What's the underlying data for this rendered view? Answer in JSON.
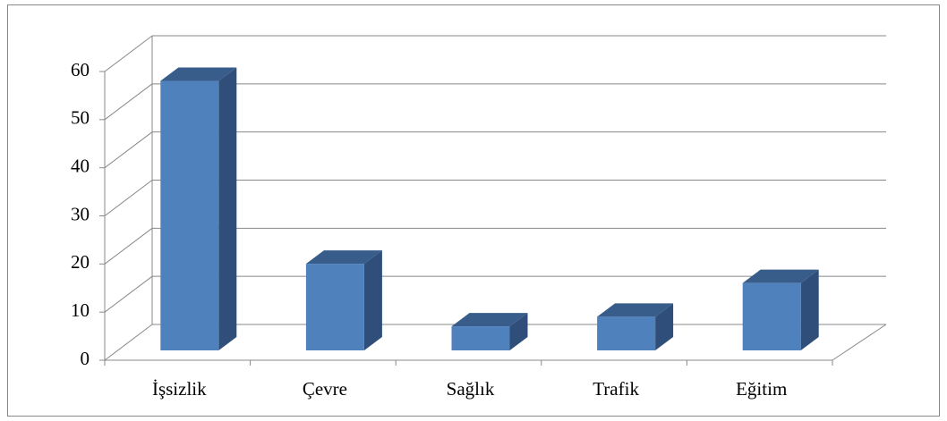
{
  "chart_data": {
    "type": "bar3d",
    "categories": [
      "İşsizlik",
      "Çevre",
      "Sağlık",
      "Trafik",
      "Eğitim"
    ],
    "values": [
      56,
      18,
      5,
      7,
      14
    ],
    "color": "#4f81bd",
    "ylim": [
      0,
      60
    ],
    "yticks": [
      0,
      10,
      20,
      30,
      40,
      50,
      60
    ],
    "grid": true
  }
}
